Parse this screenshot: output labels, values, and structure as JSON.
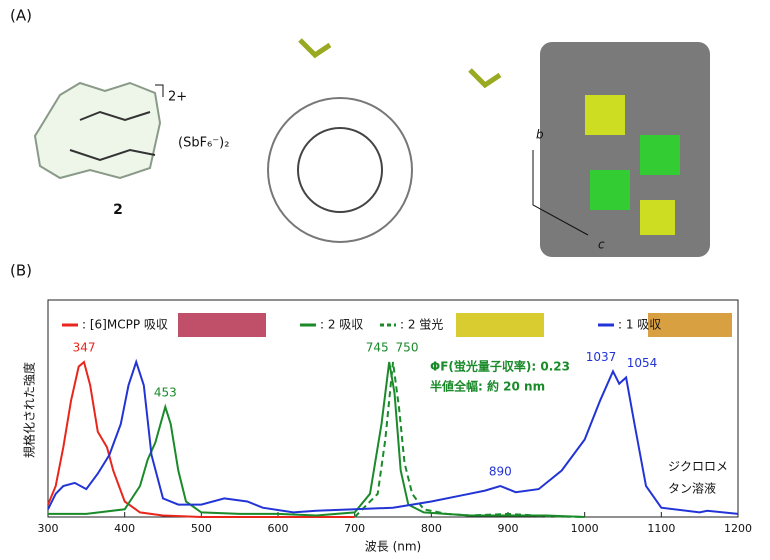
{
  "panel_a": {
    "label": "(A)",
    "charge": "2+",
    "counterion": "(SbF₆⁻)₂",
    "compound": "2",
    "axis_b": "b",
    "axis_c": "c"
  },
  "panel_b": {
    "label": "(B)"
  },
  "chart_data": {
    "type": "line",
    "xlabel": "波長 (nm)",
    "ylabel": "規格化された強度",
    "xlim": [
      300,
      1200
    ],
    "xticks": [
      300,
      400,
      500,
      600,
      700,
      800,
      900,
      1000,
      1100,
      1200
    ],
    "ylim": [
      0,
      1.4
    ],
    "annotations": [
      "ΦF(蛍光量子収率): 0.23",
      "半値全幅: 約 20 nm",
      "ジクロロメ",
      "タン溶液"
    ],
    "series": [
      {
        "name": ": [6]MCPP 吸収",
        "color": "#e8261c",
        "dash": false,
        "x": [
          300,
          310,
          320,
          330,
          340,
          347,
          355,
          365,
          377,
          385,
          400,
          420,
          450,
          500,
          600,
          700
        ],
        "values": [
          0.08,
          0.2,
          0.45,
          0.75,
          0.97,
          1.0,
          0.85,
          0.55,
          0.45,
          0.3,
          0.1,
          0.03,
          0.01,
          0,
          0,
          0
        ],
        "peaks": [
          347
        ]
      },
      {
        "name": ": 2 吸収",
        "color": "#1a8a2a",
        "dash": false,
        "x": [
          300,
          350,
          400,
          420,
          430,
          440,
          453,
          460,
          470,
          480,
          500,
          550,
          600,
          650,
          700,
          720,
          735,
          745,
          752,
          760,
          770,
          790,
          850,
          900,
          950,
          1000
        ],
        "values": [
          0.02,
          0.02,
          0.05,
          0.2,
          0.37,
          0.48,
          0.71,
          0.6,
          0.3,
          0.1,
          0.03,
          0.02,
          0.02,
          0.01,
          0.03,
          0.15,
          0.6,
          1.0,
          0.8,
          0.3,
          0.08,
          0.03,
          0.01,
          0.01,
          0.01,
          0
        ],
        "peaks": [
          453,
          745
        ]
      },
      {
        "name": ": 2 蛍光",
        "color": "#1a8a2a",
        "dash": true,
        "x": [
          700,
          730,
          740,
          750,
          758,
          765,
          775,
          790,
          820,
          850,
          900,
          950,
          1000
        ],
        "values": [
          0,
          0.15,
          0.5,
          1.0,
          0.7,
          0.35,
          0.15,
          0.05,
          0.02,
          0.01,
          0.02,
          0.005,
          0
        ],
        "peaks": [
          750
        ]
      },
      {
        "name": ": 1 吸収",
        "color": "#2334d6",
        "dash": false,
        "x": [
          300,
          310,
          320,
          335,
          350,
          365,
          380,
          395,
          405,
          415,
          425,
          435,
          450,
          470,
          500,
          530,
          560,
          580,
          620,
          650,
          700,
          750,
          800,
          840,
          870,
          890,
          910,
          940,
          970,
          1000,
          1020,
          1037,
          1045,
          1054,
          1065,
          1080,
          1100,
          1150,
          1160,
          1200
        ],
        "values": [
          0.05,
          0.15,
          0.2,
          0.22,
          0.18,
          0.28,
          0.4,
          0.6,
          0.85,
          1.0,
          0.85,
          0.4,
          0.12,
          0.08,
          0.08,
          0.12,
          0.1,
          0.06,
          0.03,
          0.04,
          0.05,
          0.06,
          0.1,
          0.14,
          0.17,
          0.2,
          0.16,
          0.18,
          0.3,
          0.5,
          0.75,
          0.94,
          0.86,
          0.9,
          0.6,
          0.2,
          0.06,
          0.03,
          0.04,
          0.02
        ],
        "peaks": [
          890,
          1037,
          1054
        ]
      }
    ]
  }
}
